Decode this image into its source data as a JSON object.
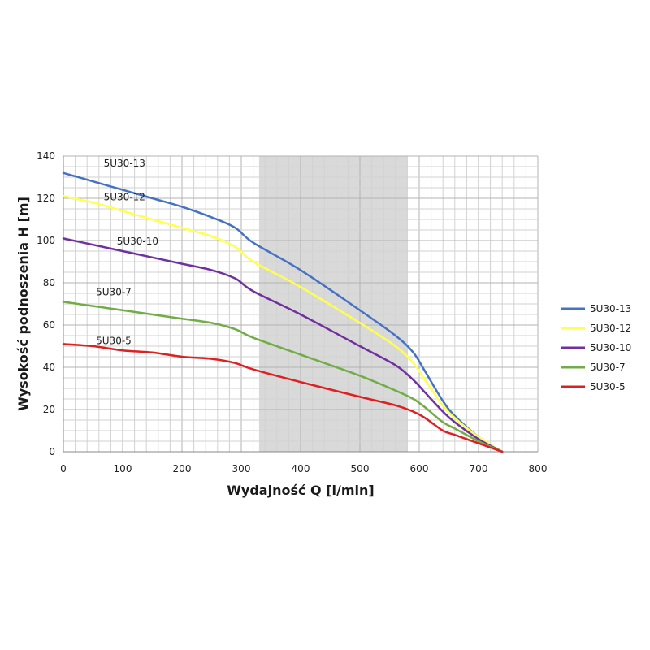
{
  "chart_data": {
    "type": "line",
    "title": "",
    "xlabel": "Wydajność Q [l/min]",
    "ylabel": "Wysokość podnoszenia H [m]",
    "xlim": [
      0,
      800
    ],
    "ylim": [
      0,
      140
    ],
    "xticks": [
      0,
      100,
      200,
      300,
      400,
      500,
      600,
      700,
      800
    ],
    "yticks": [
      0,
      20,
      40,
      60,
      80,
      100,
      120,
      140
    ],
    "grid": true,
    "legend": "right",
    "shaded_range": [
      330,
      580
    ],
    "series": [
      {
        "name": "5U30-13",
        "label": "5U30-13",
        "color": "#4472c4",
        "label_at": [
          68,
          135
        ],
        "points": [
          [
            0,
            132
          ],
          [
            50,
            128
          ],
          [
            100,
            124
          ],
          [
            150,
            120
          ],
          [
            200,
            116
          ],
          [
            250,
            111
          ],
          [
            290,
            106
          ],
          [
            320,
            99
          ],
          [
            400,
            86
          ],
          [
            500,
            67
          ],
          [
            560,
            55
          ],
          [
            590,
            47
          ],
          [
            610,
            38
          ],
          [
            640,
            24
          ],
          [
            660,
            17
          ],
          [
            700,
            7
          ],
          [
            740,
            0
          ]
        ]
      },
      {
        "name": "5U30-12",
        "label": "5U30-12",
        "color": "#ffff4d",
        "label_at": [
          68,
          119
        ],
        "points": [
          [
            0,
            121
          ],
          [
            50,
            118
          ],
          [
            100,
            114
          ],
          [
            150,
            110
          ],
          [
            200,
            106
          ],
          [
            250,
            102
          ],
          [
            290,
            97
          ],
          [
            320,
            90
          ],
          [
            400,
            78
          ],
          [
            500,
            61
          ],
          [
            560,
            50
          ],
          [
            590,
            42
          ],
          [
            610,
            34
          ],
          [
            640,
            22
          ],
          [
            660,
            16
          ],
          [
            700,
            7
          ],
          [
            740,
            0
          ]
        ]
      },
      {
        "name": "5U30-10",
        "label": "5U30-10",
        "color": "#7030a0",
        "label_at": [
          90,
          98
        ],
        "points": [
          [
            0,
            101
          ],
          [
            50,
            98
          ],
          [
            100,
            95
          ],
          [
            150,
            92
          ],
          [
            200,
            89
          ],
          [
            250,
            86
          ],
          [
            290,
            82
          ],
          [
            320,
            76
          ],
          [
            400,
            65
          ],
          [
            500,
            50
          ],
          [
            560,
            41
          ],
          [
            590,
            34
          ],
          [
            610,
            28
          ],
          [
            640,
            19
          ],
          [
            660,
            14
          ],
          [
            700,
            6
          ],
          [
            740,
            0
          ]
        ]
      },
      {
        "name": "5U30-7",
        "label": "5U30-7",
        "color": "#70ad47",
        "label_at": [
          55,
          74
        ],
        "points": [
          [
            0,
            71
          ],
          [
            50,
            69
          ],
          [
            100,
            67
          ],
          [
            150,
            65
          ],
          [
            200,
            63
          ],
          [
            250,
            61
          ],
          [
            290,
            58
          ],
          [
            320,
            54
          ],
          [
            400,
            46
          ],
          [
            500,
            36
          ],
          [
            560,
            29
          ],
          [
            590,
            25
          ],
          [
            610,
            21
          ],
          [
            640,
            14
          ],
          [
            660,
            11
          ],
          [
            700,
            5
          ],
          [
            740,
            0
          ]
        ]
      },
      {
        "name": "5U30-5",
        "label": "5U30-5",
        "color": "#e02020",
        "label_at": [
          55,
          51
        ],
        "points": [
          [
            0,
            51
          ],
          [
            50,
            50
          ],
          [
            100,
            48
          ],
          [
            150,
            47
          ],
          [
            200,
            45
          ],
          [
            250,
            44
          ],
          [
            290,
            42
          ],
          [
            320,
            39
          ],
          [
            400,
            33
          ],
          [
            500,
            26
          ],
          [
            560,
            22
          ],
          [
            590,
            19
          ],
          [
            610,
            16
          ],
          [
            640,
            10
          ],
          [
            660,
            8
          ],
          [
            700,
            4
          ],
          [
            740,
            0
          ]
        ]
      }
    ]
  }
}
